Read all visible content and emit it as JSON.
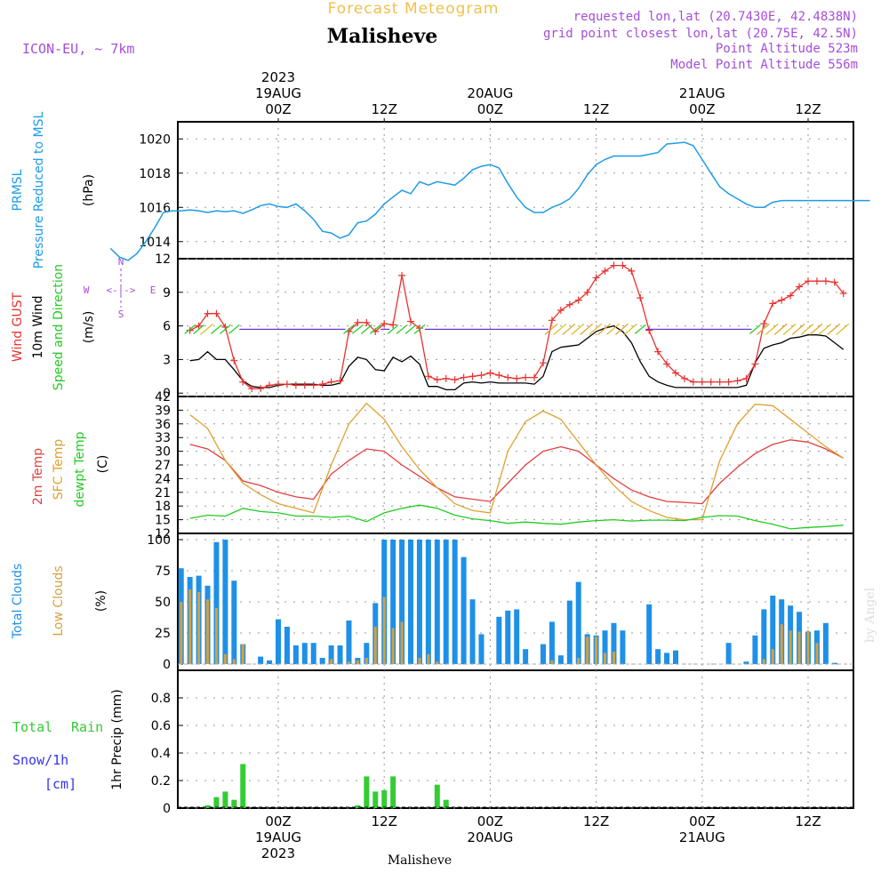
{
  "header": {
    "subtitle": "Forecast Meteogram",
    "title": "Malisheve",
    "model": "ICON-EU, ~ 7km",
    "requested": "requested lon,lat (20.7430E, 42.4838N)",
    "grid_point": "grid point closest lon,lat (20.75E, 42.5N)",
    "point_alt": "Point Altitude 523m",
    "model_alt": "Model Point Altitude 556m",
    "footer_name": "Malisheve",
    "credit": "by Angel"
  },
  "time_axis": {
    "top_labels": [
      {
        "t": 0,
        "lines": [
          "2023",
          "19AUG",
          "00Z"
        ]
      },
      {
        "t": 12,
        "lines": [
          "12Z"
        ]
      },
      {
        "t": 24,
        "lines": [
          "20AUG",
          "00Z"
        ]
      },
      {
        "t": 36,
        "lines": [
          "12Z"
        ]
      },
      {
        "t": 48,
        "lines": [
          "21AUG",
          "00Z"
        ]
      },
      {
        "t": 60,
        "lines": [
          "12Z"
        ]
      }
    ],
    "bottom_labels": [
      {
        "t": 0,
        "lines": [
          "00Z",
          "19AUG",
          "2023"
        ]
      },
      {
        "t": 12,
        "lines": [
          "12Z"
        ]
      },
      {
        "t": 24,
        "lines": [
          "00Z",
          "20AUG"
        ]
      },
      {
        "t": 36,
        "lines": [
          "12Z"
        ]
      },
      {
        "t": 48,
        "lines": [
          "00Z",
          "21AUG"
        ]
      },
      {
        "t": 60,
        "lines": [
          "12Z"
        ]
      }
    ]
  },
  "panels": {
    "pressure": {
      "label1": "PRMSL",
      "label2": "Pressure Reduced to MSL",
      "unit": "(hPa)"
    },
    "wind": {
      "label1": "Wind GUST",
      "label2": "10m Wind",
      "label3": "Speed and Direction",
      "unit": "(m/s)",
      "compass": {
        "n": "N",
        "s": "S",
        "w": "W",
        "e": "E",
        "arrow": "<-|->"
      }
    },
    "temp": {
      "label1": "2m Temp",
      "label2": "SFC Temp",
      "label3": "dewpt Temp",
      "unit": "(C)"
    },
    "clouds": {
      "label1": "Total Clouds",
      "label2": "Low Clouds",
      "unit": "(%)"
    },
    "precip": {
      "label1": "Total",
      "label1b": "Rain",
      "label2": "Snow/1h",
      "label3": "[cm]",
      "unit": "1hr Precip (mm)"
    }
  },
  "colors": {
    "pressure": "#1e9be8",
    "gust": "#e8312e",
    "wind": "#000000",
    "t2m": "#e04040",
    "tsfc": "#e0a030",
    "dew": "#22cc22",
    "total_cloud": "#1e90e8",
    "low_cloud": "#d4a040",
    "rain": "#33cc33",
    "purple": "#a64dd9",
    "subtitle": "#f0c050",
    "snow": "#3333ee"
  },
  "chart_data": [
    {
      "type": "line",
      "title": "PRMSL Pressure Reduced to MSL",
      "ylabel": "(hPa)",
      "ylim": [
        1013,
        1021
      ],
      "yticks": [
        1014,
        1016,
        1018,
        1020
      ],
      "x": [
        -19,
        -18,
        -17,
        -16,
        -15,
        -14,
        -13,
        -12,
        -11,
        -10,
        -9,
        -8,
        -7,
        -6,
        -5,
        -4,
        -3,
        -2,
        -1,
        0,
        1,
        2,
        3,
        4,
        5,
        6,
        7,
        8,
        9,
        10,
        11,
        12,
        13,
        14,
        15,
        16,
        17,
        18,
        19,
        20,
        21,
        22,
        23,
        24,
        25,
        26,
        27,
        28,
        29,
        30,
        31,
        32,
        33,
        34,
        35,
        36,
        37,
        38,
        39,
        40,
        41,
        42,
        43,
        44,
        45,
        46,
        47,
        48,
        49,
        50,
        51,
        52,
        53,
        54,
        55,
        56,
        57,
        58,
        59,
        60,
        61,
        62,
        63,
        64,
        65,
        66,
        67
      ],
      "series": [
        {
          "name": "PRMSL",
          "values": [
            1013.6,
            1013.1,
            1012.9,
            1013.3,
            1014.0,
            1014.8,
            1015.7,
            1015.8,
            1015.8,
            1015.85,
            1015.8,
            1015.7,
            1015.8,
            1015.75,
            1015.8,
            1015.65,
            1015.85,
            1016.1,
            1016.2,
            1016.05,
            1016.0,
            1016.2,
            1015.8,
            1015.3,
            1014.6,
            1014.5,
            1014.2,
            1014.4,
            1015.1,
            1015.2,
            1015.6,
            1016.2,
            1016.6,
            1017.0,
            1016.8,
            1017.5,
            1017.3,
            1017.5,
            1017.4,
            1017.3,
            1017.7,
            1018.2,
            1018.4,
            1018.5,
            1018.3,
            1017.4,
            1016.6,
            1016.0,
            1015.7,
            1015.7,
            1016.0,
            1016.2,
            1016.5,
            1017.1,
            1017.9,
            1018.5,
            1018.8,
            1019.0,
            1019.0,
            1019.0,
            1019.0,
            1019.1,
            1019.2,
            1019.7,
            1019.75,
            1019.8,
            1019.6,
            1018.8,
            1018.0,
            1017.2,
            1016.8,
            1016.5,
            1016.2,
            1016.0,
            1016.0,
            1016.3,
            1016.4,
            1016.4,
            1016.4,
            1016.4,
            1016.4,
            1016.4,
            1016.4,
            1016.4,
            1016.4,
            1016.4,
            1016.4
          ]
        }
      ]
    },
    {
      "type": "line",
      "title": "Wind GUST / 10m Wind Speed and Direction",
      "ylabel": "(m/s)",
      "ylim": [
        -0.3,
        12
      ],
      "yticks": [
        0,
        3,
        6,
        9,
        12
      ],
      "x": [
        -10,
        -9,
        -8,
        -7,
        -6,
        -5,
        -4,
        -3,
        -2,
        -1,
        0,
        1,
        2,
        3,
        4,
        5,
        6,
        7,
        8,
        9,
        10,
        11,
        12,
        13,
        14,
        15,
        16,
        17,
        18,
        19,
        20,
        21,
        22,
        23,
        24,
        25,
        26,
        27,
        28,
        29,
        30,
        31,
        32,
        33,
        34,
        35,
        36,
        37,
        38,
        39,
        40,
        41,
        42,
        43,
        44,
        45,
        46,
        47,
        48,
        49,
        50,
        51,
        52,
        53,
        54,
        55,
        56,
        57,
        58,
        59,
        60,
        61,
        62,
        63,
        64
      ],
      "series": [
        {
          "name": "Wind GUST",
          "values": [
            5.6,
            6.0,
            7.1,
            7.1,
            5.9,
            2.9,
            1.0,
            0.4,
            0.4,
            0.7,
            0.8,
            0.8,
            0.7,
            0.7,
            0.7,
            0.8,
            1.0,
            1.1,
            5.5,
            6.3,
            6.3,
            5.5,
            6.2,
            6.1,
            10.5,
            6.4,
            5.8,
            1.5,
            1.2,
            1.3,
            1.2,
            1.4,
            1.5,
            1.6,
            1.8,
            1.6,
            1.4,
            1.3,
            1.4,
            1.4,
            2.7,
            6.5,
            7.4,
            7.9,
            8.3,
            9.0,
            10.3,
            10.9,
            11.4,
            11.4,
            10.9,
            8.5,
            5.6,
            3.7,
            2.6,
            1.8,
            1.3,
            1.0,
            1.0,
            1.0,
            1.0,
            1.0,
            1.1,
            1.3,
            2.6,
            6.2,
            8.0,
            8.3,
            8.7,
            9.5,
            10.0,
            10.0,
            10.0,
            9.9,
            8.9
          ]
        },
        {
          "name": "10m Wind",
          "values": [
            2.9,
            3.0,
            3.7,
            3.0,
            3.0,
            2.1,
            1.1,
            0.6,
            0.5,
            0.5,
            0.7,
            0.8,
            0.8,
            0.8,
            0.8,
            0.7,
            0.7,
            0.9,
            2.4,
            3.2,
            3.0,
            2.1,
            2.0,
            3.2,
            2.8,
            3.3,
            2.6,
            0.6,
            0.6,
            0.3,
            0.3,
            0.9,
            1.0,
            0.9,
            1.0,
            0.9,
            0.9,
            0.9,
            0.9,
            0.8,
            1.5,
            3.7,
            4.1,
            4.2,
            4.3,
            4.9,
            5.5,
            5.8,
            6.0,
            5.5,
            4.5,
            2.8,
            1.5,
            1.0,
            0.7,
            0.5,
            0.5,
            0.5,
            0.5,
            0.5,
            0.5,
            0.5,
            0.5,
            0.7,
            2.7,
            4.0,
            4.3,
            4.5,
            4.9,
            5.0,
            5.2,
            5.2,
            5.1,
            4.5,
            3.9
          ]
        }
      ]
    },
    {
      "type": "line",
      "title": "2m Temp / SFC Temp / dewpt Temp",
      "ylabel": "(C)",
      "ylim": [
        12,
        42
      ],
      "yticks": [
        12,
        15,
        18,
        21,
        24,
        27,
        30,
        33,
        36,
        39,
        42
      ],
      "x": [
        -10,
        -8,
        -6,
        -4,
        -2,
        0,
        2,
        4,
        6,
        8,
        10,
        12,
        14,
        16,
        18,
        20,
        22,
        24,
        26,
        28,
        30,
        32,
        34,
        36,
        38,
        40,
        42,
        44,
        46,
        48,
        50,
        52,
        54,
        56,
        58,
        60,
        62,
        64
      ],
      "series": [
        {
          "name": "2m Temp",
          "values": [
            31.5,
            30.5,
            28.0,
            23.5,
            22.5,
            21.0,
            20.0,
            19.5,
            25.0,
            28.0,
            30.5,
            30.0,
            27.0,
            24.5,
            22.0,
            20.0,
            19.5,
            19.0,
            23.0,
            27.0,
            30.0,
            31.0,
            30.0,
            27.0,
            24.0,
            21.5,
            20.0,
            19.0,
            18.8,
            18.5,
            23.0,
            26.5,
            29.5,
            31.5,
            32.5,
            32.0,
            30.5,
            28.5
          ]
        },
        {
          "name": "SFC Temp",
          "values": [
            38.0,
            35.0,
            28.0,
            23.0,
            20.5,
            18.5,
            17.5,
            16.5,
            27.0,
            36.0,
            40.5,
            37.0,
            31.0,
            26.0,
            22.0,
            18.5,
            17.0,
            16.5,
            30.0,
            36.5,
            38.8,
            37.0,
            32.0,
            27.0,
            22.5,
            19.0,
            17.0,
            15.5,
            15.0,
            15.0,
            28.0,
            36.0,
            40.3,
            40.0,
            37.0,
            34.0,
            31.0,
            28.5
          ]
        },
        {
          "name": "dewpt Temp",
          "values": [
            15.3,
            16.0,
            15.8,
            17.5,
            16.8,
            16.5,
            15.8,
            15.8,
            15.5,
            15.8,
            14.6,
            16.5,
            17.5,
            18.2,
            17.5,
            16.0,
            15.2,
            14.8,
            14.2,
            14.5,
            14.2,
            14.0,
            14.5,
            14.8,
            15.0,
            14.7,
            14.9,
            14.9,
            14.8,
            15.5,
            15.9,
            15.8,
            14.8,
            14.0,
            13.0,
            13.3,
            13.5,
            13.8
          ]
        }
      ]
    },
    {
      "type": "bar",
      "title": "Total Clouds / Low Clouds",
      "ylabel": "(%)",
      "ylim": [
        -5,
        105
      ],
      "yticks": [
        0,
        25,
        50,
        75,
        100
      ],
      "x": [
        -11,
        -10,
        -9,
        -8,
        -7,
        -6,
        -5,
        -4,
        -3,
        -2,
        -1,
        0,
        1,
        2,
        3,
        4,
        5,
        6,
        7,
        8,
        9,
        10,
        11,
        12,
        13,
        14,
        15,
        16,
        17,
        18,
        19,
        20,
        21,
        22,
        23,
        24,
        25,
        26,
        27,
        28,
        29,
        30,
        31,
        32,
        33,
        34,
        35,
        36,
        37,
        38,
        39,
        40,
        41,
        42,
        43,
        44,
        45,
        46,
        47,
        48,
        49,
        50,
        51,
        52,
        53,
        54,
        55,
        56,
        57,
        58,
        59,
        60,
        61,
        62,
        63,
        64
      ],
      "series": [
        {
          "name": "Total Clouds",
          "values": [
            77,
            70,
            71,
            63,
            98,
            100,
            67,
            16,
            0,
            6,
            3,
            36,
            30,
            15,
            17,
            17,
            5,
            15,
            15,
            35,
            5,
            17,
            49,
            100,
            100,
            100,
            100,
            100,
            100,
            100,
            100,
            100,
            86,
            52,
            24,
            0,
            38,
            43,
            44,
            12,
            0,
            16,
            34,
            7,
            51,
            66,
            24,
            23,
            27,
            33,
            27,
            0,
            0,
            48,
            12,
            9,
            11,
            0,
            0,
            0,
            0,
            0,
            17,
            0,
            2,
            23,
            44,
            55,
            52,
            47,
            42,
            26,
            27,
            33,
            1,
            0
          ]
        },
        {
          "name": "Low Clouds",
          "values": [
            50,
            60,
            58,
            52,
            45,
            8,
            4,
            16,
            0,
            0,
            0,
            0,
            0,
            0,
            0,
            0,
            0,
            4,
            0,
            2,
            3,
            5,
            30,
            54,
            29,
            34,
            0,
            5,
            8,
            2,
            0,
            0,
            0,
            0,
            0,
            0,
            0,
            0,
            0,
            0,
            0,
            0,
            3,
            0,
            0,
            5,
            22,
            22,
            9,
            10,
            0,
            0,
            0,
            0,
            0,
            0,
            0,
            0,
            0,
            0,
            0,
            0,
            0,
            0,
            0,
            0,
            4,
            12,
            32,
            27,
            26,
            27,
            17,
            0,
            0,
            0
          ]
        }
      ]
    },
    {
      "type": "bar",
      "title": "1hr Precip",
      "ylabel": "1hr Precip (mm)",
      "ylim": [
        0,
        1.0
      ],
      "yticks": [
        0,
        0.2,
        0.4,
        0.6,
        0.8
      ],
      "x": [
        -8,
        -7,
        -6,
        -5,
        -4,
        9,
        10,
        11,
        12,
        13,
        18,
        19
      ],
      "series": [
        {
          "name": "Total Rain",
          "values": [
            0.02,
            0.08,
            0.12,
            0.06,
            0.32,
            0.02,
            0.23,
            0.12,
            0.13,
            0.23,
            0.17,
            0.06
          ]
        }
      ]
    }
  ]
}
